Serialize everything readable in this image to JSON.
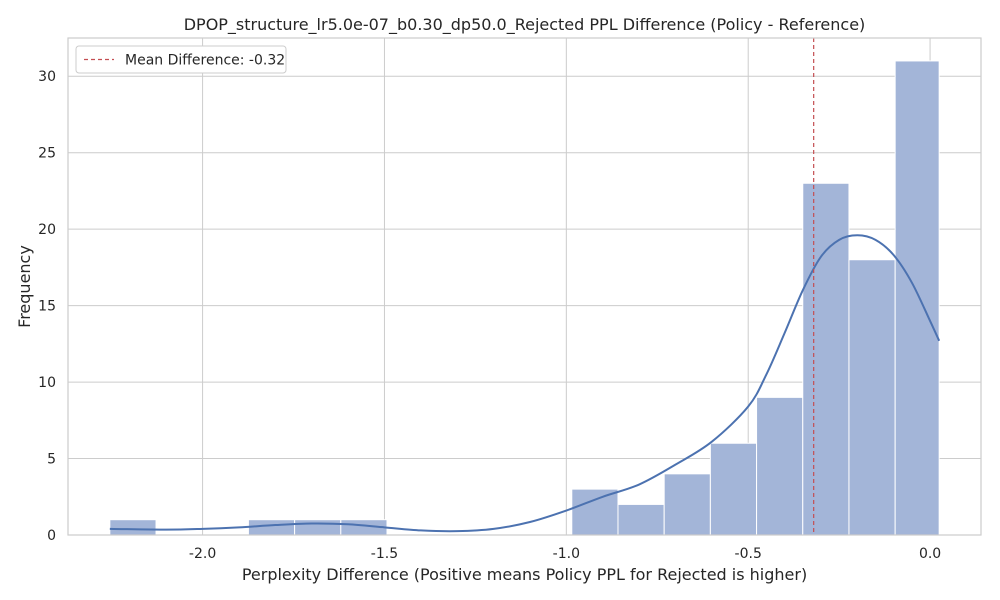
{
  "chart_data": {
    "type": "bar",
    "title": "DPOP_structure_lr5.0e-07_b0.30_dp50.0_Rejected PPL Difference (Policy - Reference)",
    "xlabel": "Perplexity Difference (Positive means Policy PPL for Rejected is higher)",
    "ylabel": "Frequency",
    "xlim": [
      -2.37,
      0.14
    ],
    "ylim": [
      0,
      32.5
    ],
    "xticks": [
      -2.0,
      -1.5,
      -1.0,
      -0.5,
      0.0
    ],
    "xtick_labels": [
      "-2.0",
      "-1.5",
      "-1.0",
      "-0.5",
      "0.0"
    ],
    "yticks": [
      0,
      5,
      10,
      15,
      20,
      25,
      30
    ],
    "ytick_labels": [
      "0",
      "5",
      "10",
      "15",
      "20",
      "25",
      "30"
    ],
    "grid": true,
    "bins": [
      {
        "x0": -2.255,
        "x1": -2.128,
        "count": 1
      },
      {
        "x0": -2.128,
        "x1": -2.001,
        "count": 0
      },
      {
        "x0": -2.001,
        "x1": -1.874,
        "count": 0
      },
      {
        "x0": -1.874,
        "x1": -1.747,
        "count": 1
      },
      {
        "x0": -1.747,
        "x1": -1.62,
        "count": 1
      },
      {
        "x0": -1.62,
        "x1": -1.493,
        "count": 1
      },
      {
        "x0": -1.493,
        "x1": -1.366,
        "count": 0
      },
      {
        "x0": -1.366,
        "x1": -1.239,
        "count": 0
      },
      {
        "x0": -1.239,
        "x1": -1.112,
        "count": 0
      },
      {
        "x0": -1.112,
        "x1": -0.985,
        "count": 0
      },
      {
        "x0": -0.985,
        "x1": -0.858,
        "count": 3
      },
      {
        "x0": -0.858,
        "x1": -0.731,
        "count": 2
      },
      {
        "x0": -0.731,
        "x1": -0.604,
        "count": 4
      },
      {
        "x0": -0.604,
        "x1": -0.477,
        "count": 6
      },
      {
        "x0": -0.477,
        "x1": -0.35,
        "count": 9
      },
      {
        "x0": -0.35,
        "x1": -0.223,
        "count": 23
      },
      {
        "x0": -0.223,
        "x1": -0.096,
        "count": 18
      },
      {
        "x0": -0.096,
        "x1": 0.025,
        "count": 31
      }
    ],
    "kde": {
      "x": [
        -2.255,
        -2.1,
        -2.0,
        -1.9,
        -1.8,
        -1.7,
        -1.6,
        -1.5,
        -1.4,
        -1.3,
        -1.2,
        -1.1,
        -1.0,
        -0.9,
        -0.8,
        -0.7,
        -0.6,
        -0.5,
        -0.45,
        -0.4,
        -0.35,
        -0.3,
        -0.25,
        -0.2,
        -0.15,
        -0.1,
        -0.05,
        0.0,
        0.025
      ],
      "y": [
        0.4,
        0.35,
        0.4,
        0.5,
        0.65,
        0.75,
        0.7,
        0.5,
        0.3,
        0.25,
        0.4,
        0.85,
        1.6,
        2.5,
        3.3,
        4.6,
        6.1,
        8.4,
        10.5,
        13.2,
        16.0,
        18.2,
        19.3,
        19.6,
        19.3,
        18.3,
        16.5,
        14.0,
        12.7
      ]
    },
    "mean_line": {
      "x": -0.32,
      "label": "Mean Difference: -0.32"
    },
    "legend_position": "top-left",
    "colors": {
      "bar_fill": "#a3b5d8",
      "bar_edge": "#ffffff",
      "kde_line": "#4c72b0",
      "mean_line": "#c44e52",
      "grid": "#cccccc",
      "axes_edge": "#cccccc"
    }
  }
}
